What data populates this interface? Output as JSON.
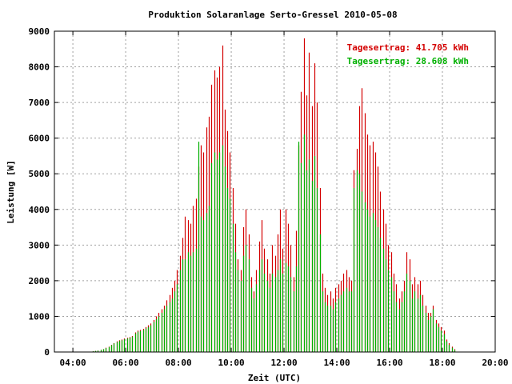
{
  "chart_data": {
    "type": "bar",
    "title": "Produktion Solaranlage Serto-Gressel 2010-05-08",
    "xlabel": "Zeit (UTC)",
    "ylabel": "Leistung [W]",
    "xlim": [
      3.3,
      20.0
    ],
    "ylim": [
      0,
      9000
    ],
    "x_ticks": [
      "04:00",
      "06:00",
      "08:00",
      "10:00",
      "12:00",
      "14:00",
      "16:00",
      "18:00",
      "20:00"
    ],
    "y_ticks": [
      "0",
      "1000",
      "2000",
      "3000",
      "4000",
      "5000",
      "6000",
      "7000",
      "8000",
      "9000"
    ],
    "grid": true,
    "legend_position": "top-right",
    "colors": {
      "red_series": "#d40000",
      "green_series": "#00b000"
    },
    "series": [
      {
        "name": "Tagesertrag: 41.705 kWh",
        "color": "#d40000",
        "x": [
          4.75,
          4.85,
          4.95,
          5.05,
          5.15,
          5.25,
          5.35,
          5.45,
          5.55,
          5.65,
          5.75,
          5.85,
          5.95,
          6.05,
          6.15,
          6.25,
          6.35,
          6.45,
          6.55,
          6.65,
          6.75,
          6.85,
          6.95,
          7.05,
          7.15,
          7.25,
          7.35,
          7.45,
          7.55,
          7.65,
          7.75,
          7.85,
          7.95,
          8.05,
          8.15,
          8.25,
          8.35,
          8.45,
          8.55,
          8.65,
          8.75,
          8.85,
          8.95,
          9.05,
          9.15,
          9.25,
          9.35,
          9.45,
          9.55,
          9.65,
          9.75,
          9.85,
          9.95,
          10.05,
          10.15,
          10.25,
          10.35,
          10.45,
          10.55,
          10.65,
          10.75,
          10.85,
          10.95,
          11.05,
          11.15,
          11.25,
          11.35,
          11.45,
          11.55,
          11.65,
          11.75,
          11.85,
          11.95,
          12.05,
          12.15,
          12.25,
          12.35,
          12.45,
          12.55,
          12.65,
          12.75,
          12.85,
          12.95,
          13.05,
          13.15,
          13.25,
          13.35,
          13.45,
          13.55,
          13.65,
          13.75,
          13.85,
          13.95,
          14.05,
          14.15,
          14.25,
          14.35,
          14.45,
          14.55,
          14.65,
          14.75,
          14.85,
          14.95,
          15.05,
          15.15,
          15.25,
          15.35,
          15.45,
          15.55,
          15.65,
          15.75,
          15.85,
          15.95,
          16.05,
          16.15,
          16.25,
          16.35,
          16.45,
          16.55,
          16.65,
          16.75,
          16.85,
          16.95,
          17.05,
          17.15,
          17.25,
          17.35,
          17.45,
          17.55,
          17.65,
          17.75,
          17.85,
          17.95,
          18.05,
          18.15,
          18.25,
          18.35,
          18.45
        ],
        "values": [
          20,
          30,
          40,
          60,
          80,
          120,
          150,
          200,
          250,
          300,
          330,
          350,
          380,
          400,
          420,
          450,
          550,
          600,
          620,
          650,
          700,
          750,
          800,
          900,
          1000,
          1100,
          1200,
          1300,
          1450,
          1600,
          1800,
          2000,
          2300,
          2700,
          3200,
          3800,
          3700,
          3600,
          4100,
          4300,
          5200,
          5800,
          5600,
          6300,
          6600,
          7500,
          7900,
          7700,
          8000,
          8600,
          6800,
          6200,
          5600,
          4600,
          3600,
          2600,
          2300,
          3500,
          4000,
          3300,
          2100,
          1700,
          2300,
          3100,
          3700,
          2900,
          2600,
          2200,
          3000,
          2700,
          3300,
          4000,
          2900,
          4000,
          3600,
          3000,
          2100,
          3400,
          5800,
          7300,
          8800,
          7200,
          8400,
          6900,
          8100,
          7000,
          4600,
          2200,
          1800,
          1600,
          1700,
          1500,
          1800,
          1900,
          2000,
          2200,
          2300,
          2100,
          2000,
          5100,
          5700,
          6900,
          7400,
          6700,
          6100,
          5800,
          5900,
          5600,
          5200,
          4500,
          4000,
          3600,
          3000,
          2800,
          2200,
          1900,
          1500,
          1700,
          2000,
          2800,
          2600,
          1900,
          2100,
          1900,
          2000,
          1600,
          1300,
          1100,
          1100,
          1300,
          900,
          800,
          700,
          600,
          350,
          250,
          150,
          80
        ]
      },
      {
        "name": "Tagesertrag: 28.608 kWh",
        "color": "#00b000",
        "x": [
          4.75,
          4.85,
          4.95,
          5.05,
          5.15,
          5.25,
          5.35,
          5.45,
          5.55,
          5.65,
          5.75,
          5.85,
          5.95,
          6.05,
          6.15,
          6.25,
          6.35,
          6.45,
          6.55,
          6.65,
          6.75,
          6.85,
          6.95,
          7.05,
          7.15,
          7.25,
          7.35,
          7.45,
          7.55,
          7.65,
          7.75,
          7.85,
          7.95,
          8.05,
          8.15,
          8.25,
          8.35,
          8.45,
          8.55,
          8.65,
          8.75,
          8.85,
          8.95,
          9.05,
          9.15,
          9.25,
          9.35,
          9.45,
          9.55,
          9.65,
          9.75,
          9.85,
          9.95,
          10.05,
          10.15,
          10.25,
          10.35,
          10.45,
          10.55,
          10.65,
          10.75,
          10.85,
          10.95,
          11.05,
          11.15,
          11.25,
          11.35,
          11.45,
          11.55,
          11.65,
          11.75,
          11.85,
          11.95,
          12.05,
          12.15,
          12.25,
          12.35,
          12.45,
          12.55,
          12.65,
          12.75,
          12.85,
          12.95,
          13.05,
          13.15,
          13.25,
          13.35,
          13.45,
          13.55,
          13.65,
          13.75,
          13.85,
          13.95,
          14.05,
          14.15,
          14.25,
          14.35,
          14.45,
          14.55,
          14.65,
          14.75,
          14.85,
          14.95,
          15.05,
          15.15,
          15.25,
          15.35,
          15.45,
          15.55,
          15.65,
          15.75,
          15.85,
          15.95,
          16.05,
          16.15,
          16.25,
          16.35,
          16.45,
          16.55,
          16.65,
          16.75,
          16.85,
          16.95,
          17.05,
          17.15,
          17.25,
          17.35,
          17.45,
          17.55,
          17.65,
          17.75,
          17.85,
          17.95,
          18.05,
          18.15,
          18.25,
          18.35,
          18.45
        ],
        "values": [
          20,
          30,
          40,
          60,
          80,
          110,
          140,
          190,
          240,
          280,
          310,
          330,
          360,
          380,
          400,
          430,
          520,
          570,
          590,
          620,
          660,
          700,
          750,
          840,
          920,
          1000,
          1100,
          1200,
          1300,
          1400,
          1500,
          1700,
          1900,
          2300,
          2600,
          2600,
          2800,
          2700,
          2800,
          2900,
          5900,
          3800,
          3700,
          3900,
          4100,
          5300,
          5600,
          5400,
          5600,
          5800,
          5200,
          4600,
          4300,
          3600,
          2800,
          2300,
          2000,
          2700,
          3000,
          2600,
          1800,
          1500,
          1900,
          2300,
          2600,
          2200,
          2000,
          1800,
          2200,
          2100,
          2300,
          2600,
          2200,
          2500,
          2400,
          2100,
          1700,
          2400,
          5900,
          5300,
          6100,
          5100,
          5400,
          4800,
          5500,
          4600,
          3300,
          1700,
          1400,
          1300,
          1300,
          1200,
          1400,
          1500,
          1600,
          1700,
          1800,
          1700,
          1700,
          4600,
          5100,
          5000,
          4500,
          4200,
          4000,
          3800,
          3900,
          3700,
          3500,
          3200,
          2900,
          2600,
          2300,
          2100,
          1700,
          1400,
          1200,
          1400,
          1700,
          2200,
          2000,
          1500,
          1700,
          1500,
          1600,
          1300,
          1100,
          900,
          1000,
          1200,
          800,
          700,
          600,
          500,
          300,
          200,
          120,
          60
        ]
      }
    ]
  }
}
